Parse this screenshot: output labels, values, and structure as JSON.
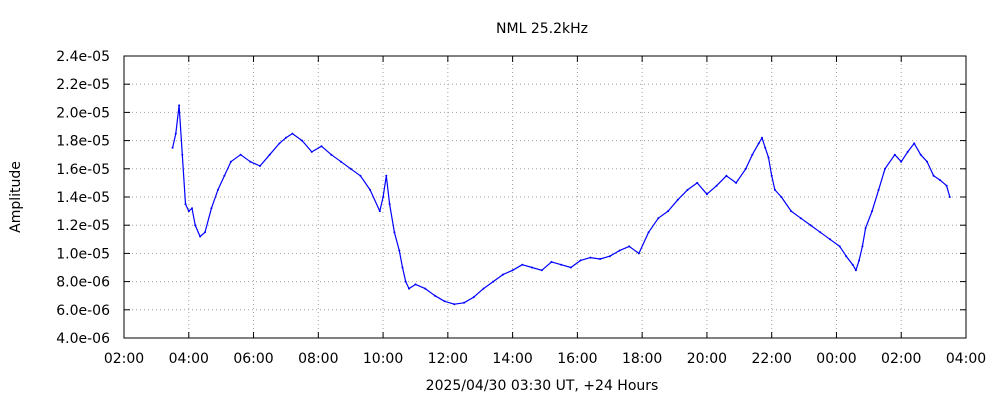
{
  "chart_data": {
    "type": "line",
    "title": "NML 25.2kHz",
    "xlabel": "2025/04/30 03:30 UT, +24 Hours",
    "ylabel": "Amplitude",
    "xlim": [
      2,
      28
    ],
    "ylim": [
      4e-06,
      2.4e-05
    ],
    "grid": true,
    "x_tick_values": [
      2,
      4,
      6,
      8,
      10,
      12,
      14,
      16,
      18,
      20,
      22,
      24,
      26,
      28
    ],
    "x_tick_labels": [
      "02:00",
      "04:00",
      "06:00",
      "08:00",
      "10:00",
      "12:00",
      "14:00",
      "16:00",
      "18:00",
      "20:00",
      "22:00",
      "00:00",
      "02:00",
      "04:00"
    ],
    "y_tick_values": [
      4e-06,
      6e-06,
      8e-06,
      1e-05,
      1.2e-05,
      1.4e-05,
      1.6e-05,
      1.8e-05,
      2e-05,
      2.2e-05,
      2.4e-05
    ],
    "y_tick_labels": [
      "4.0e-06",
      "6.0e-06",
      "8.0e-06",
      "1.0e-05",
      "1.2e-05",
      "1.4e-05",
      "1.6e-05",
      "1.8e-05",
      "2.0e-05",
      "2.2e-05",
      "2.4e-05"
    ],
    "series": [
      {
        "color": "#0000ff",
        "x": [
          3.5,
          3.6,
          3.7,
          3.8,
          3.9,
          4.0,
          4.1,
          4.2,
          4.35,
          4.5,
          4.7,
          4.9,
          5.1,
          5.3,
          5.6,
          5.9,
          6.2,
          6.5,
          6.8,
          7.0,
          7.2,
          7.5,
          7.8,
          8.1,
          8.4,
          8.7,
          9.0,
          9.3,
          9.6,
          9.9,
          10.0,
          10.1,
          10.2,
          10.35,
          10.5,
          10.6,
          10.7,
          10.8,
          11.0,
          11.3,
          11.6,
          11.9,
          12.2,
          12.5,
          12.8,
          13.1,
          13.4,
          13.7,
          14.0,
          14.3,
          14.6,
          14.9,
          15.2,
          15.5,
          15.8,
          16.1,
          16.4,
          16.7,
          17.0,
          17.3,
          17.6,
          17.9,
          18.2,
          18.5,
          18.8,
          19.1,
          19.4,
          19.7,
          20.0,
          20.3,
          20.6,
          20.9,
          21.2,
          21.4,
          21.6,
          21.7,
          21.8,
          21.9,
          22.0,
          22.1,
          22.3,
          22.6,
          22.9,
          23.2,
          23.5,
          23.8,
          24.1,
          24.3,
          24.5,
          24.6,
          24.7,
          24.8,
          24.9,
          25.1,
          25.3,
          25.5,
          25.8,
          26.0,
          26.2,
          26.4,
          26.6,
          26.8,
          27.0,
          27.2,
          27.4,
          27.5
        ],
        "y": [
          1.75e-05,
          1.85e-05,
          2.05e-05,
          1.7e-05,
          1.35e-05,
          1.3e-05,
          1.32e-05,
          1.2e-05,
          1.12e-05,
          1.15e-05,
          1.32e-05,
          1.45e-05,
          1.55e-05,
          1.65e-05,
          1.7e-05,
          1.65e-05,
          1.62e-05,
          1.7e-05,
          1.78e-05,
          1.82e-05,
          1.85e-05,
          1.8e-05,
          1.72e-05,
          1.76e-05,
          1.7e-05,
          1.65e-05,
          1.6e-05,
          1.55e-05,
          1.45e-05,
          1.3e-05,
          1.4e-05,
          1.55e-05,
          1.35e-05,
          1.15e-05,
          1.02e-05,
          9e-06,
          8e-06,
          7.5e-06,
          7.8e-06,
          7.5e-06,
          7e-06,
          6.6e-06,
          6.4e-06,
          6.5e-06,
          6.9e-06,
          7.5e-06,
          8e-06,
          8.5e-06,
          8.8e-06,
          9.2e-06,
          9e-06,
          8.8e-06,
          9.4e-06,
          9.2e-06,
          9e-06,
          9.5e-06,
          9.7e-06,
          9.6e-06,
          9.8e-06,
          1.02e-05,
          1.05e-05,
          1e-05,
          1.15e-05,
          1.25e-05,
          1.3e-05,
          1.38e-05,
          1.45e-05,
          1.5e-05,
          1.42e-05,
          1.48e-05,
          1.55e-05,
          1.5e-05,
          1.6e-05,
          1.7e-05,
          1.78e-05,
          1.82e-05,
          1.75e-05,
          1.68e-05,
          1.55e-05,
          1.45e-05,
          1.4e-05,
          1.3e-05,
          1.25e-05,
          1.2e-05,
          1.15e-05,
          1.1e-05,
          1.05e-05,
          9.8e-06,
          9.2e-06,
          8.8e-06,
          9.5e-06,
          1.05e-05,
          1.18e-05,
          1.3e-05,
          1.45e-05,
          1.6e-05,
          1.7e-05,
          1.65e-05,
          1.72e-05,
          1.78e-05,
          1.7e-05,
          1.65e-05,
          1.55e-05,
          1.52e-05,
          1.48e-05,
          1.4e-05
        ]
      }
    ]
  }
}
